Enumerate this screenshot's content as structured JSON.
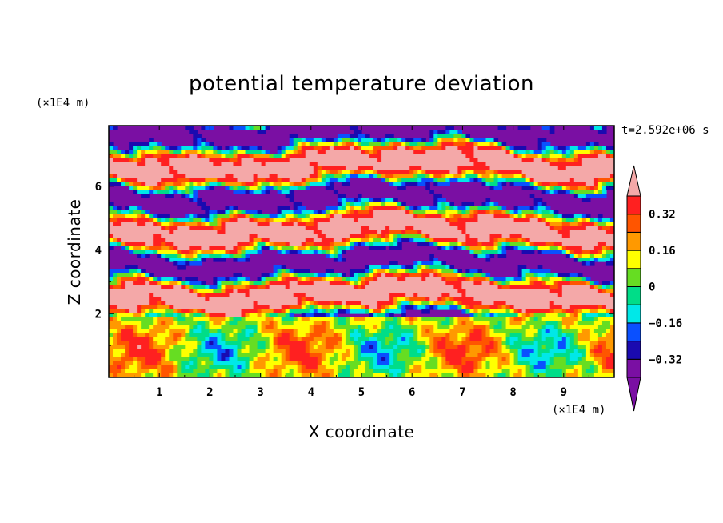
{
  "chart_data": {
    "type": "heatmap",
    "title": "potential temperature deviation",
    "xlabel": "X coordinate",
    "ylabel": "Z coordinate",
    "x_unit": "(×1E4 m)",
    "y_unit": "(×1E4 m)",
    "time_label": "t=2.592e+06 s",
    "xlim": [
      0,
      10
    ],
    "ylim": [
      0,
      7.9
    ],
    "x_ticks": [
      1,
      2,
      3,
      4,
      5,
      6,
      7,
      8,
      9
    ],
    "y_ticks": [
      2,
      4,
      6
    ],
    "grid": false,
    "colorbar": {
      "placement": "right",
      "levels": [
        -0.4,
        -0.32,
        -0.24,
        -0.16,
        -0.08,
        0,
        0.08,
        0.16,
        0.24,
        0.32,
        0.4
      ],
      "tick_values": [
        0.32,
        0.16,
        0,
        -0.16,
        -0.32
      ],
      "tick_labels": [
        "0.32",
        "0.16",
        "0",
        "−0.16",
        "−0.32"
      ],
      "colors": [
        "#7a0fa3",
        "#1a0ab0",
        "#0a50ff",
        "#00e8e8",
        "#00dd88",
        "#66dd22",
        "#ffff00",
        "#ff9900",
        "#ff5500",
        "#ff2020",
        "#f4a8a8"
      ],
      "under_color": "#7a0fa3",
      "over_color": "#f4a8a8"
    }
  }
}
